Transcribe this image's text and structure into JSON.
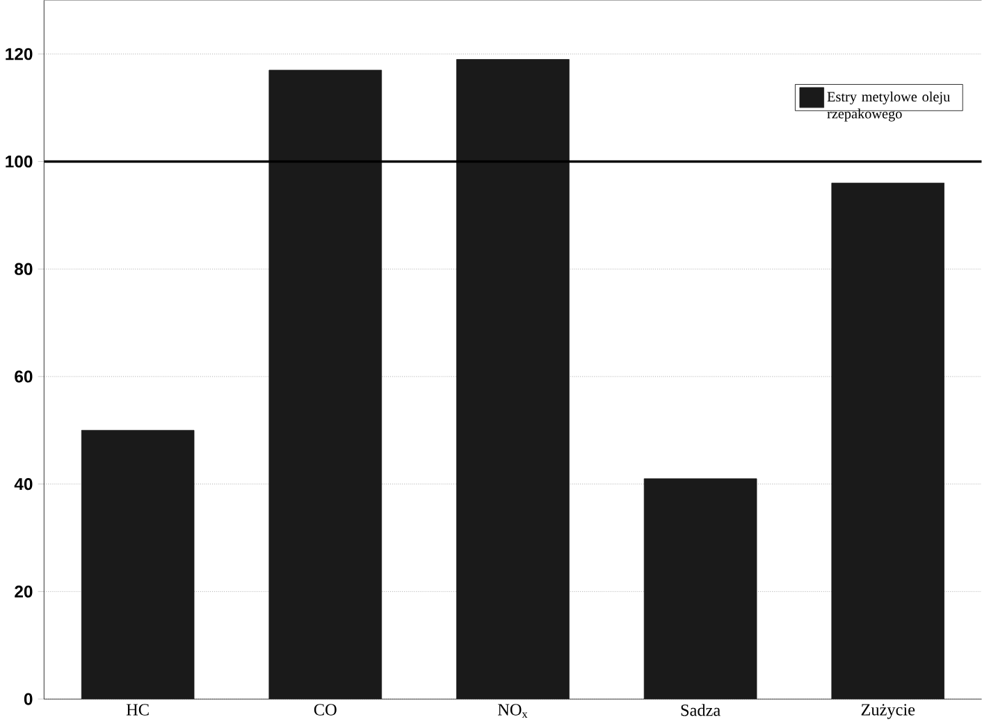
{
  "chart_data": {
    "type": "bar",
    "categories": [
      "HC",
      "CO",
      "NO$_{x}$",
      "Sadza",
      "Zużycie"
    ],
    "series": [
      {
        "name": "Estry metylowe oleju rzepakowego",
        "color": "#1a1a1a",
        "values": [
          50,
          117,
          119,
          41,
          96
        ]
      }
    ],
    "ylim": [
      0,
      130
    ],
    "yticks": [
      0,
      20,
      40,
      60,
      80,
      100,
      120
    ],
    "grid": "y",
    "legend": "top right",
    "ref_lines": [
      {
        "axis": "y",
        "value": 100,
        "color": "#000000"
      }
    ]
  }
}
